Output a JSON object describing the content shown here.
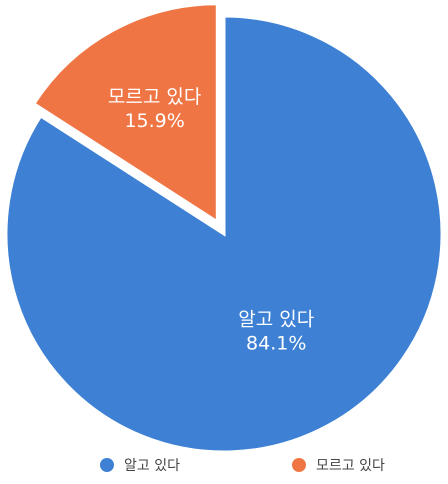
{
  "chart_data": {
    "type": "pie",
    "categories": [
      "알고 있다",
      "모르고 있다"
    ],
    "values": [
      84.1,
      15.9
    ],
    "value_labels": [
      "84.1%",
      "15.9%"
    ],
    "exploded": [
      false,
      true
    ],
    "colors": [
      "#3d80d4",
      "#f07545"
    ],
    "legend_position": "bottom",
    "legend": [
      "알고 있다",
      "모르고 있다"
    ]
  }
}
